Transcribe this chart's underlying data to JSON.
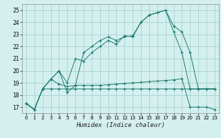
{
  "xlabel": "Humidex (Indice chaleur)",
  "bg_color": "#d4f0ee",
  "grid_color": "#a0ccc8",
  "line_color": "#1a7a6e",
  "xlim": [
    -0.5,
    23.5
  ],
  "ylim": [
    16.5,
    25.5
  ],
  "xticks": [
    0,
    1,
    2,
    3,
    4,
    5,
    6,
    7,
    8,
    9,
    10,
    11,
    12,
    13,
    14,
    15,
    16,
    17,
    18,
    19,
    20,
    21,
    22,
    23
  ],
  "yticks": [
    17,
    18,
    19,
    20,
    21,
    22,
    23,
    24,
    25
  ],
  "s1_x": [
    0,
    1,
    2,
    3,
    4,
    5,
    6,
    7,
    8,
    9,
    10,
    11,
    12,
    13,
    14,
    15,
    16,
    17,
    18,
    19,
    20,
    21,
    22,
    23
  ],
  "s1_y": [
    17.3,
    16.8,
    18.5,
    18.5,
    18.5,
    18.5,
    18.5,
    18.5,
    18.5,
    18.5,
    18.5,
    18.5,
    18.5,
    18.5,
    18.5,
    18.5,
    18.5,
    18.5,
    18.5,
    18.5,
    18.5,
    18.5,
    18.5,
    18.5
  ],
  "s2_x": [
    0,
    1,
    2,
    3,
    4,
    5,
    6,
    7,
    8,
    9,
    10,
    11,
    12,
    13,
    14,
    15,
    16,
    17,
    18,
    19,
    20,
    21,
    22,
    23
  ],
  "s2_y": [
    17.3,
    16.8,
    18.5,
    19.3,
    18.9,
    18.7,
    18.8,
    18.8,
    18.8,
    18.8,
    18.85,
    18.9,
    18.95,
    19.0,
    19.05,
    19.1,
    19.15,
    19.2,
    19.25,
    19.35,
    17.0,
    17.0,
    17.0,
    16.8
  ],
  "s3_x": [
    0,
    1,
    2,
    3,
    4,
    5,
    6,
    7,
    8,
    9,
    10,
    11,
    12,
    13,
    14,
    15,
    16,
    17,
    18,
    19,
    20,
    21,
    22,
    23
  ],
  "s3_y": [
    17.3,
    16.8,
    18.5,
    19.3,
    20.0,
    19.0,
    21.0,
    20.8,
    21.5,
    22.0,
    22.5,
    22.2,
    22.9,
    22.8,
    24.0,
    24.6,
    24.8,
    25.0,
    23.2,
    21.5,
    18.5,
    18.5,
    18.5,
    18.5
  ],
  "s4_x": [
    0,
    1,
    2,
    3,
    4,
    5,
    6,
    7,
    8,
    9,
    10,
    11,
    12,
    13,
    14,
    15,
    16,
    17,
    18,
    19,
    20,
    21,
    22,
    23
  ],
  "s4_y": [
    17.3,
    16.8,
    18.5,
    19.3,
    20.0,
    18.2,
    18.8,
    21.5,
    22.0,
    22.5,
    22.8,
    22.5,
    22.8,
    22.9,
    24.0,
    24.6,
    24.8,
    25.0,
    23.7,
    23.2,
    21.5,
    18.5,
    18.5,
    18.5
  ]
}
